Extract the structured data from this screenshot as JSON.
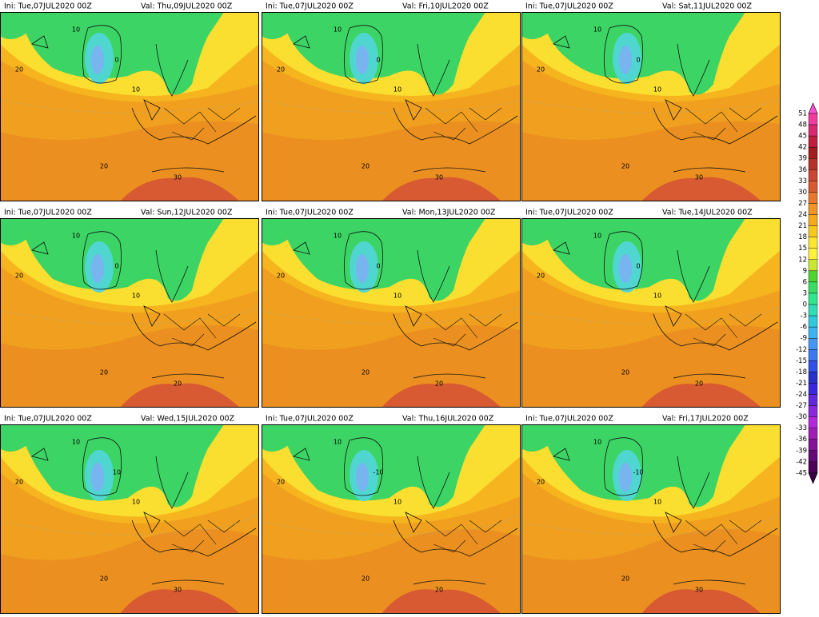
{
  "panels": [
    {
      "init": "Ini: Tue,07JUL2020 00Z",
      "valid": "Val: Thu,09JUL2020 00Z",
      "contour_labels": [
        "10",
        "0",
        "10",
        "20",
        "20",
        "30"
      ]
    },
    {
      "init": "Ini: Tue,07JUL2020 00Z",
      "valid": "Val: Fri,10JUL2020 00Z",
      "contour_labels": [
        "10",
        "0",
        "10",
        "20",
        "20",
        "30"
      ]
    },
    {
      "init": "Ini: Tue,07JUL2020 00Z",
      "valid": "Val: Sat,11JUL2020 00Z",
      "contour_labels": [
        "10",
        "0",
        "10",
        "20",
        "20",
        "30"
      ]
    },
    {
      "init": "Ini: Tue,07JUL2020 00Z",
      "valid": "Val: Sun,12JUL2020 00Z",
      "contour_labels": [
        "10",
        "0",
        "10",
        "20",
        "20",
        "20"
      ]
    },
    {
      "init": "Ini: Tue,07JUL2020 00Z",
      "valid": "Val: Mon,13JUL2020 00Z",
      "contour_labels": [
        "10",
        "0",
        "10",
        "20",
        "20",
        "20"
      ]
    },
    {
      "init": "Ini: Tue,07JUL2020 00Z",
      "valid": "Val: Tue,14JUL2020 00Z",
      "contour_labels": [
        "10",
        "0",
        "10",
        "20",
        "20",
        "20"
      ]
    },
    {
      "init": "Ini: Tue,07JUL2020 00Z",
      "valid": "Val: Wed,15JUL2020 00Z",
      "contour_labels": [
        "10",
        "10",
        "10",
        "20",
        "20",
        "30"
      ]
    },
    {
      "init": "Ini: Tue,07JUL2020 00Z",
      "valid": "Val: Thu,16JUL2020 00Z",
      "contour_labels": [
        "10",
        "-10",
        "10",
        "20",
        "20",
        "20"
      ]
    },
    {
      "init": "Ini: Tue,07JUL2020 00Z",
      "valid": "Val: Fri,17JUL2020 00Z",
      "contour_labels": [
        "10",
        "-10",
        "10",
        "20",
        "20",
        "30"
      ]
    }
  ],
  "colorbar": {
    "levels": [
      51,
      48,
      45,
      42,
      39,
      36,
      33,
      30,
      27,
      24,
      21,
      18,
      15,
      12,
      9,
      6,
      3,
      0,
      -3,
      -6,
      -9,
      -12,
      -15,
      -18,
      -21,
      -24,
      -27,
      -30,
      -33,
      -36,
      -39,
      -42,
      -45
    ],
    "colors": [
      "#f03ca0",
      "#d8286e",
      "#c01e3c",
      "#a01e1e",
      "#b43228",
      "#c84632",
      "#d85a32",
      "#e87830",
      "#f09628",
      "#f5aa1e",
      "#f8c81e",
      "#fae632",
      "#fff03c",
      "#c8e632",
      "#50d232",
      "#3cdc64",
      "#32e68c",
      "#32dcb4",
      "#32c8dc",
      "#3cb4f0",
      "#4696f5",
      "#3c78f0",
      "#3250e6",
      "#2832c8",
      "#3c28dc",
      "#6428dc",
      "#8c28dc",
      "#b428dc",
      "#a01eb4",
      "#821496",
      "#640a78",
      "#50005a"
    ],
    "over_color": "#ff50d2",
    "under_color": "#3c0046"
  }
}
